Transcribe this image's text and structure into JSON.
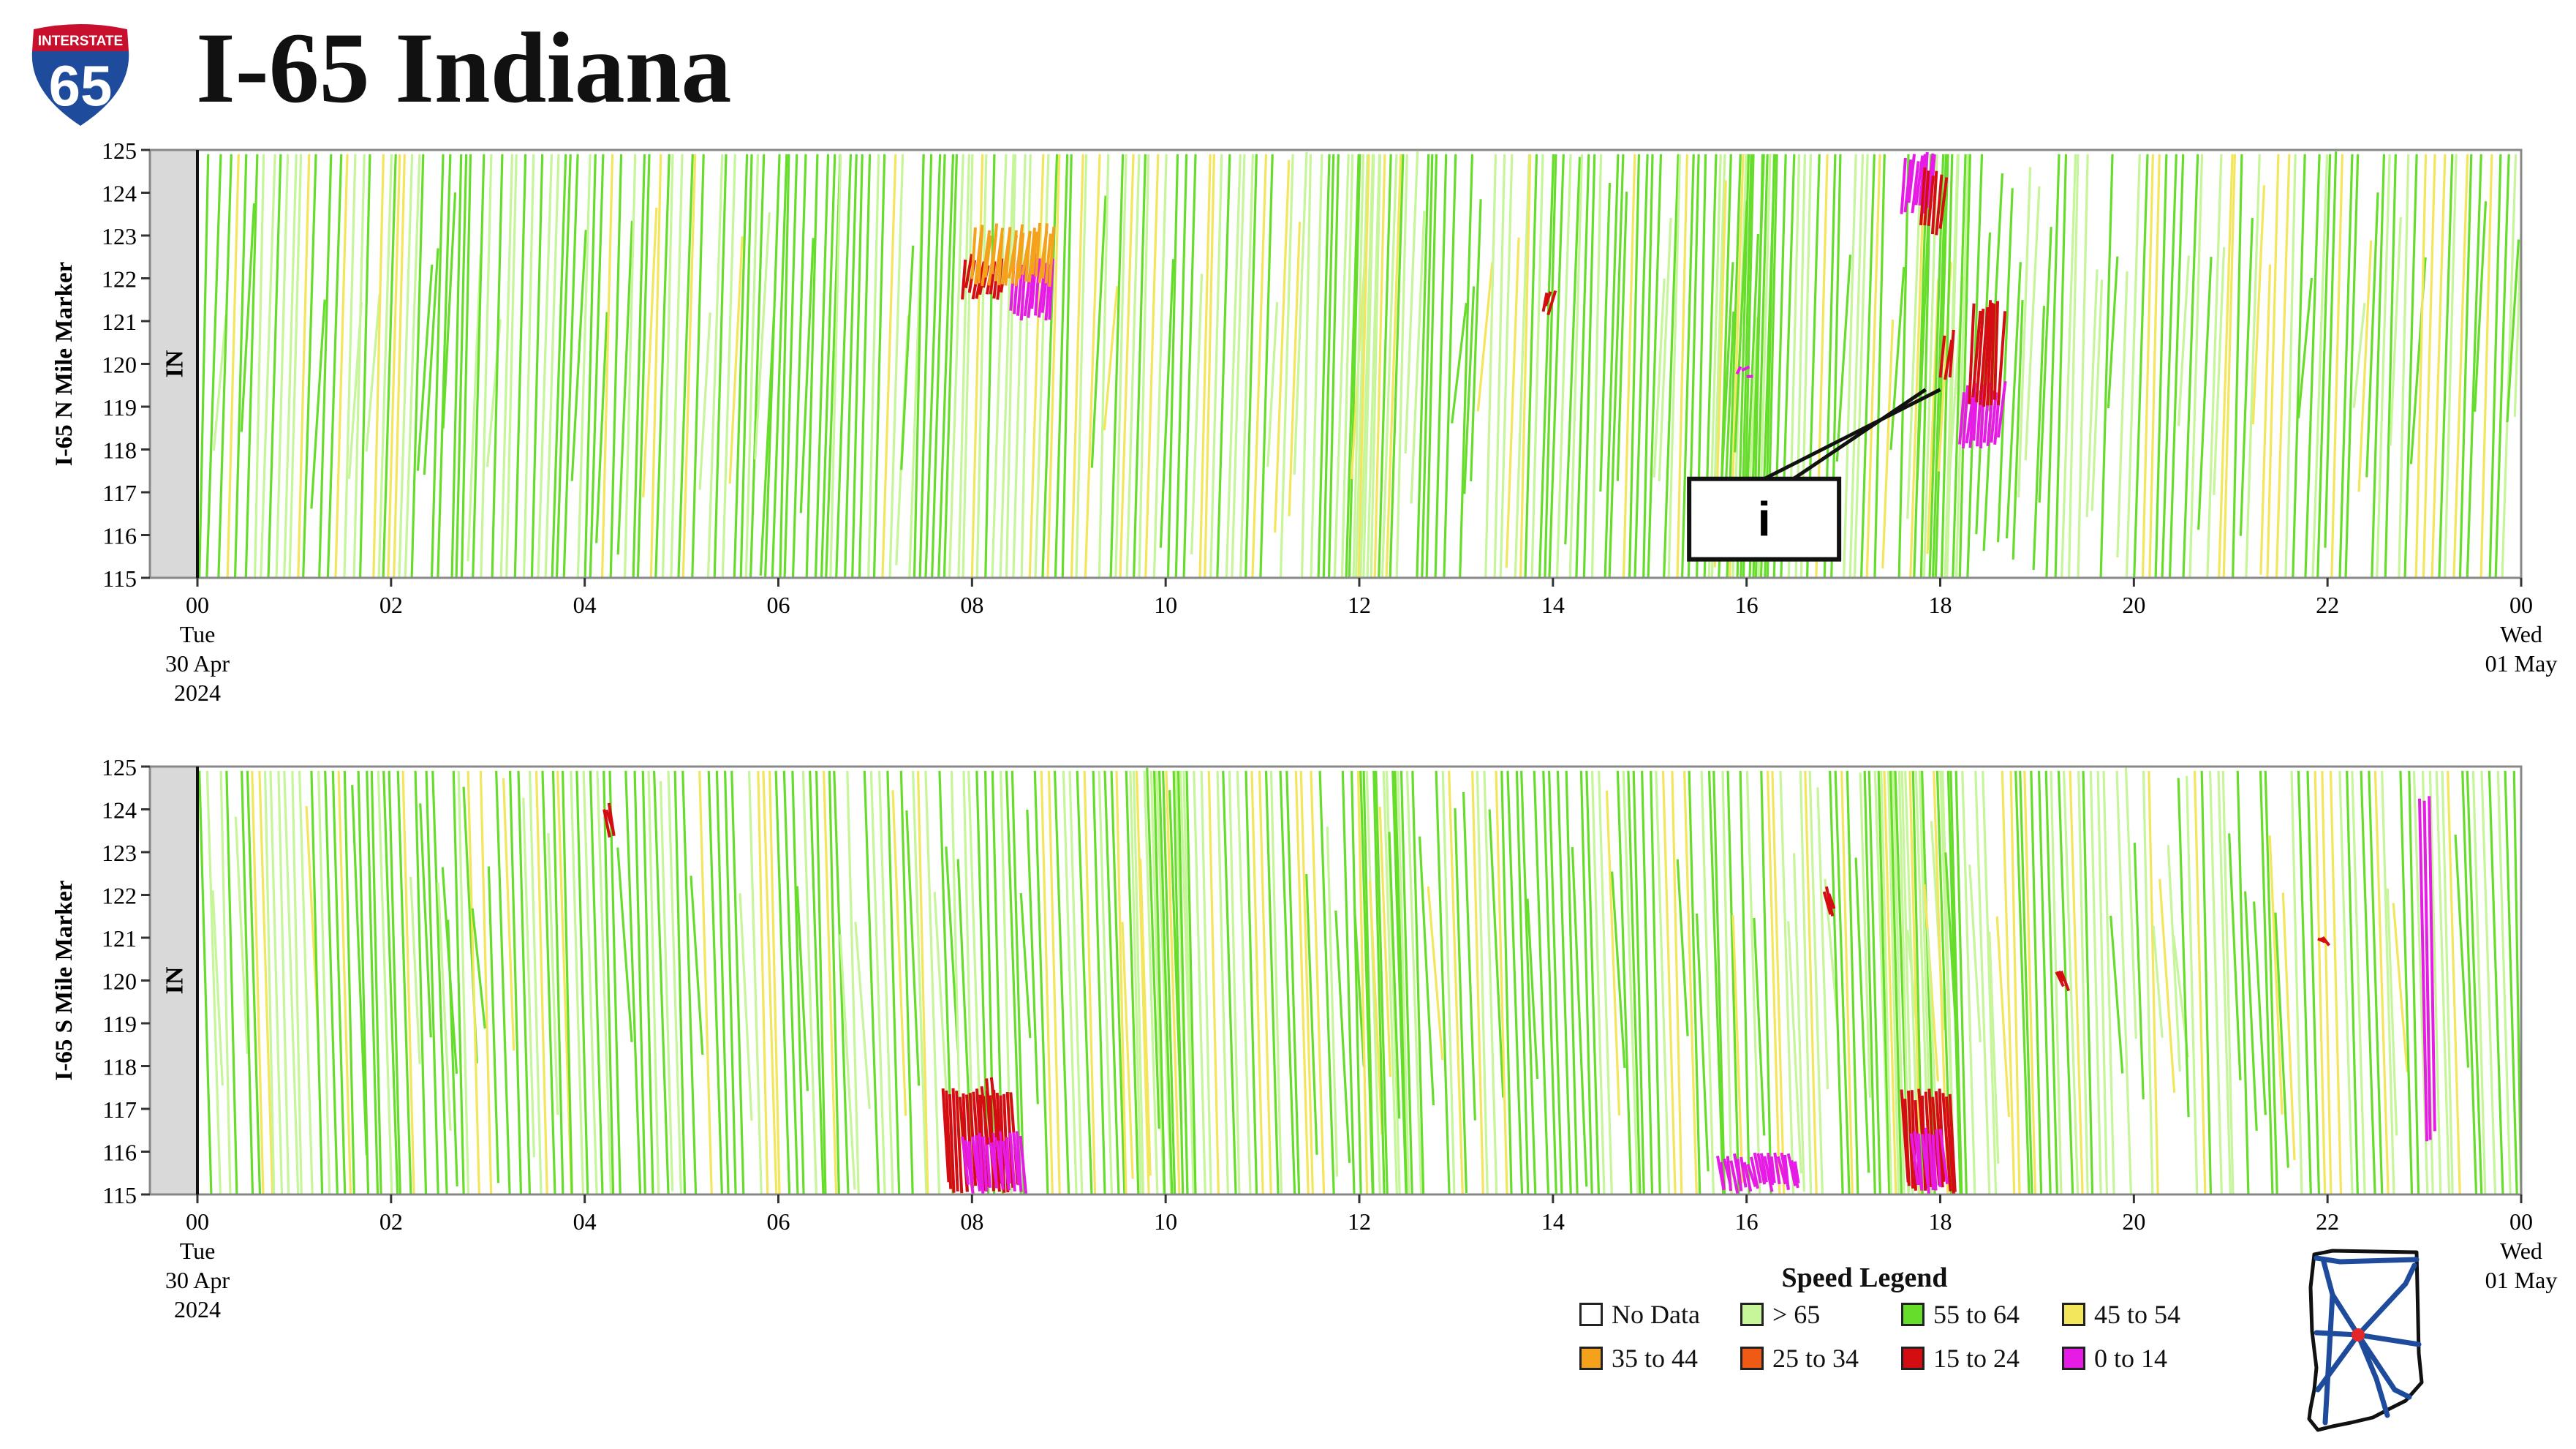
{
  "header": {
    "title": "I-65 Indiana",
    "shield": {
      "top_text": "INTERSTATE",
      "number": "65",
      "blue": "#1f4b9c",
      "red": "#c8102e"
    }
  },
  "colors": {
    "no_data": "#ffffff",
    "gt65": "#c6f59a",
    "s55_64": "#66dd2a",
    "s45_54": "#f3e65c",
    "s35_44": "#f4a21b",
    "s25_34": "#f05a14",
    "s15_24": "#d40d12",
    "s0_14": "#e61ce6",
    "state_band": "#d9d9d9",
    "map_outline": "#111111",
    "map_routes": "#1f4b9c",
    "map_marker": "#e3262a"
  },
  "chart_data": [
    {
      "type": "heatmap",
      "xlabel": "",
      "ylabel": "I-65 N Mile Marker",
      "state_label": "IN",
      "xlim": [
        0,
        24
      ],
      "ylim": [
        115,
        125
      ],
      "y_ticks": [
        "115",
        "116",
        "117",
        "118",
        "119",
        "120",
        "121",
        "122",
        "123",
        "124",
        "125"
      ],
      "x_ticks": [
        "00",
        "02",
        "04",
        "06",
        "08",
        "10",
        "12",
        "14",
        "16",
        "18",
        "20",
        "22",
        "00"
      ],
      "x_start_label": [
        "Tue",
        "30 Apr",
        "2024"
      ],
      "x_end_label": [
        "Wed",
        "01 May"
      ],
      "direction": "north",
      "grid": false,
      "annotation": {
        "text": "i",
        "box_at": [
          16.2,
          116.8
        ],
        "points_to": [
          [
            18.0,
            119.4
          ],
          [
            17.85,
            119.4
          ]
        ]
      },
      "congestion_events": [
        {
          "start_h": 7.9,
          "end_h": 8.3,
          "mile_from": 121.5,
          "mile_to": 122.6,
          "speed": "s15_24"
        },
        {
          "start_h": 8.4,
          "end_h": 8.8,
          "mile_from": 121.0,
          "mile_to": 122.6,
          "speed": "s0_14"
        },
        {
          "start_h": 8.0,
          "end_h": 8.8,
          "mile_from": 121.8,
          "mile_to": 123.3,
          "speed": "s35_44"
        },
        {
          "start_h": 13.9,
          "end_h": 13.95,
          "mile_from": 121.1,
          "mile_to": 121.9,
          "speed": "s15_24"
        },
        {
          "start_h": 15.9,
          "end_h": 16.0,
          "mile_from": 119.7,
          "mile_to": 120.0,
          "speed": "s0_14"
        },
        {
          "start_h": 17.6,
          "end_h": 17.9,
          "mile_from": 123.5,
          "mile_to": 125.0,
          "speed": "s0_14"
        },
        {
          "start_h": 17.8,
          "end_h": 18.0,
          "mile_from": 123.0,
          "mile_to": 124.6,
          "speed": "s15_24"
        },
        {
          "start_h": 18.0,
          "end_h": 18.1,
          "mile_from": 119.5,
          "mile_to": 120.8,
          "speed": "s15_24"
        },
        {
          "start_h": 18.2,
          "end_h": 18.6,
          "mile_from": 118.0,
          "mile_to": 119.6,
          "speed": "s0_14"
        },
        {
          "start_h": 18.3,
          "end_h": 18.6,
          "mile_from": 119.0,
          "mile_to": 121.5,
          "speed": "s15_24"
        }
      ]
    },
    {
      "type": "heatmap",
      "xlabel": "",
      "ylabel": "I-65 S Mile Marker",
      "state_label": "IN",
      "xlim": [
        0,
        24
      ],
      "ylim": [
        115,
        125
      ],
      "y_ticks": [
        "115",
        "116",
        "117",
        "118",
        "119",
        "120",
        "121",
        "122",
        "123",
        "124",
        "125"
      ],
      "x_ticks": [
        "00",
        "02",
        "04",
        "06",
        "08",
        "10",
        "12",
        "14",
        "16",
        "18",
        "20",
        "22",
        "00"
      ],
      "x_start_label": [
        "Tue",
        "30 Apr",
        "2024"
      ],
      "x_end_label": [
        "Wed",
        "01 May"
      ],
      "direction": "south",
      "grid": false,
      "congestion_events": [
        {
          "start_h": 4.2,
          "end_h": 4.25,
          "mile_from": 123.3,
          "mile_to": 124.2,
          "speed": "s15_24"
        },
        {
          "start_h": 7.7,
          "end_h": 8.4,
          "mile_from": 115.0,
          "mile_to": 117.5,
          "speed": "s15_24"
        },
        {
          "start_h": 7.9,
          "end_h": 8.5,
          "mile_from": 115.0,
          "mile_to": 116.5,
          "speed": "s0_14"
        },
        {
          "start_h": 8.1,
          "end_h": 8.2,
          "mile_from": 116.0,
          "mile_to": 117.8,
          "speed": "s15_24"
        },
        {
          "start_h": 15.7,
          "end_h": 16.5,
          "mile_from": 115.0,
          "mile_to": 116.0,
          "speed": "s0_14"
        },
        {
          "start_h": 16.8,
          "end_h": 16.85,
          "mile_from": 121.5,
          "mile_to": 122.3,
          "speed": "s15_24"
        },
        {
          "start_h": 17.6,
          "end_h": 18.1,
          "mile_from": 115.0,
          "mile_to": 117.5,
          "speed": "s15_24"
        },
        {
          "start_h": 17.7,
          "end_h": 18.0,
          "mile_from": 115.0,
          "mile_to": 116.6,
          "speed": "s0_14"
        },
        {
          "start_h": 19.2,
          "end_h": 19.25,
          "mile_from": 119.7,
          "mile_to": 120.5,
          "speed": "s15_24"
        },
        {
          "start_h": 21.9,
          "end_h": 21.95,
          "mile_from": 120.8,
          "mile_to": 121.1,
          "speed": "s15_24"
        },
        {
          "start_h": 22.95,
          "end_h": 23.05,
          "mile_from": 116.2,
          "mile_to": 124.5,
          "speed": "s0_14"
        }
      ]
    }
  ],
  "legend": {
    "title": "Speed Legend",
    "items": [
      {
        "label": "No Data",
        "color_key": "no_data"
      },
      {
        "label": "> 65",
        "color_key": "gt65"
      },
      {
        "label": "55 to 64",
        "color_key": "s55_64"
      },
      {
        "label": "45 to 54",
        "color_key": "s45_54"
      },
      {
        "label": "35 to 44",
        "color_key": "s35_44"
      },
      {
        "label": "25 to 34",
        "color_key": "s25_34"
      },
      {
        "label": "15 to 24",
        "color_key": "s15_24"
      },
      {
        "label": "0 to 14",
        "color_key": "s0_14"
      }
    ]
  },
  "state_map": {
    "icon": "indiana-map-icon"
  }
}
